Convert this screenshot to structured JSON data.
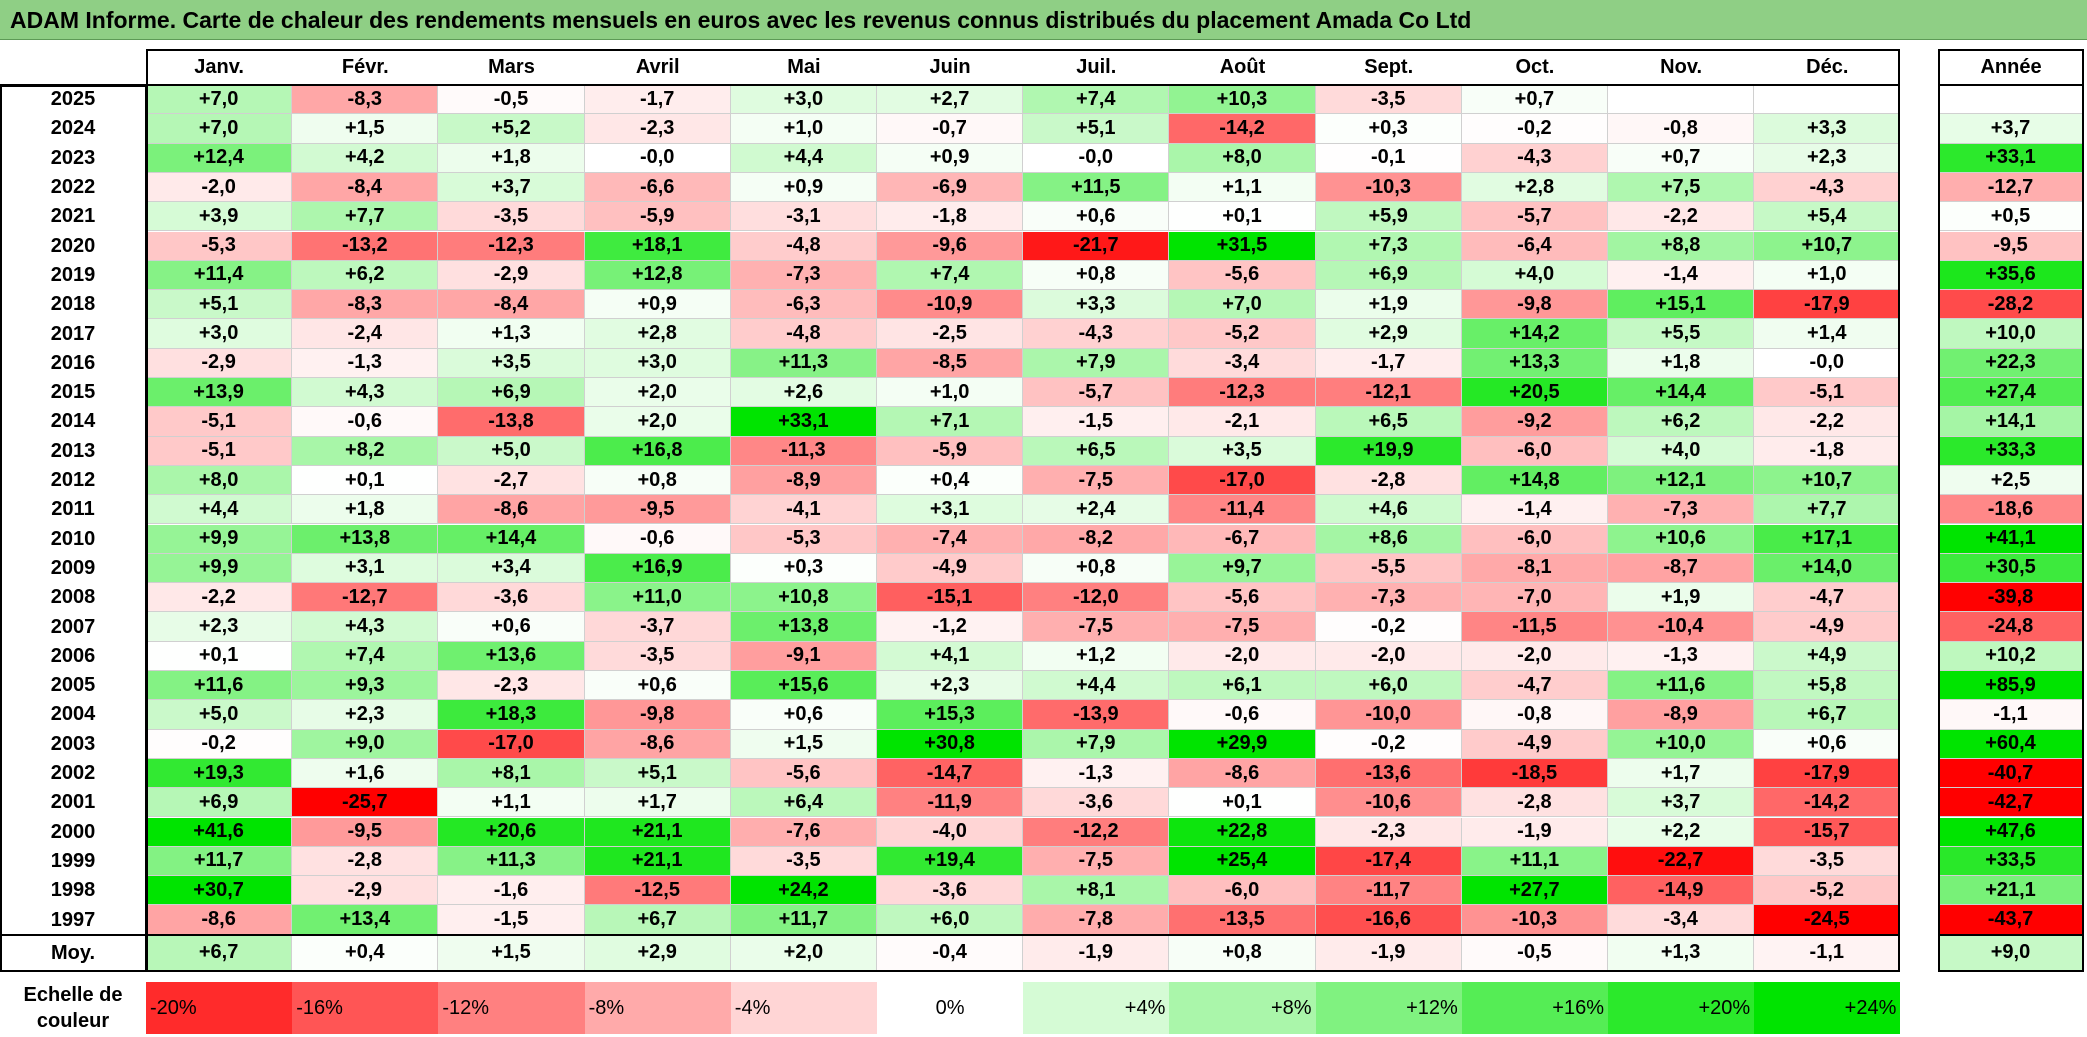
{
  "title": "ADAM Informe. Carte de chaleur des rendements mensuels en euros avec les revenus connus distribués du placement Amada Co Ltd",
  "chart_data": {
    "type": "heatmap",
    "columns": [
      "Janv.",
      "Févr.",
      "Mars",
      "Avril",
      "Mai",
      "Juin",
      "Juil.",
      "Août",
      "Sept.",
      "Oct.",
      "Nov.",
      "Déc."
    ],
    "year_header": "Année",
    "rows": [
      {
        "year": "2025",
        "months": [
          "+7,0",
          "-8,3",
          "-0,5",
          "-1,7",
          "+3,0",
          "+2,7",
          "+7,4",
          "+10,3",
          "-3,5",
          "+0,7",
          "",
          ""
        ],
        "annual": ""
      },
      {
        "year": "2024",
        "months": [
          "+7,0",
          "+1,5",
          "+5,2",
          "-2,3",
          "+1,0",
          "-0,7",
          "+5,1",
          "-14,2",
          "+0,3",
          "-0,2",
          "-0,8",
          "+3,3"
        ],
        "annual": "+3,7"
      },
      {
        "year": "2023",
        "months": [
          "+12,4",
          "+4,2",
          "+1,8",
          "-0,0",
          "+4,4",
          "+0,9",
          "-0,0",
          "+8,0",
          "-0,1",
          "-4,3",
          "+0,7",
          "+2,3"
        ],
        "annual": "+33,1"
      },
      {
        "year": "2022",
        "months": [
          "-2,0",
          "-8,4",
          "+3,7",
          "-6,6",
          "+0,9",
          "-6,9",
          "+11,5",
          "+1,1",
          "-10,3",
          "+2,8",
          "+7,5",
          "-4,3"
        ],
        "annual": "-12,7"
      },
      {
        "year": "2021",
        "months": [
          "+3,9",
          "+7,7",
          "-3,5",
          "-5,9",
          "-3,1",
          "-1,8",
          "+0,6",
          "+0,1",
          "+5,9",
          "-5,7",
          "-2,2",
          "+5,4"
        ],
        "annual": "+0,5"
      },
      {
        "year": "2020",
        "months": [
          "-5,3",
          "-13,2",
          "-12,3",
          "+18,1",
          "-4,8",
          "-9,6",
          "-21,7",
          "+31,5",
          "+7,3",
          "-6,4",
          "+8,8",
          "+10,7"
        ],
        "annual": "-9,5"
      },
      {
        "year": "2019",
        "months": [
          "+11,4",
          "+6,2",
          "-2,9",
          "+12,8",
          "-7,3",
          "+7,4",
          "+0,8",
          "-5,6",
          "+6,9",
          "+4,0",
          "-1,4",
          "+1,0"
        ],
        "annual": "+35,6"
      },
      {
        "year": "2018",
        "months": [
          "+5,1",
          "-8,3",
          "-8,4",
          "+0,9",
          "-6,3",
          "-10,9",
          "+3,3",
          "+7,0",
          "+1,9",
          "-9,8",
          "+15,1",
          "-17,9"
        ],
        "annual": "-28,2"
      },
      {
        "year": "2017",
        "months": [
          "+3,0",
          "-2,4",
          "+1,3",
          "+2,8",
          "-4,8",
          "-2,5",
          "-4,3",
          "-5,2",
          "+2,9",
          "+14,2",
          "+5,5",
          "+1,4"
        ],
        "annual": "+10,0"
      },
      {
        "year": "2016",
        "months": [
          "-2,9",
          "-1,3",
          "+3,5",
          "+3,0",
          "+11,3",
          "-8,5",
          "+7,9",
          "-3,4",
          "-1,7",
          "+13,3",
          "+1,8",
          "-0,0"
        ],
        "annual": "+22,3"
      },
      {
        "year": "2015",
        "months": [
          "+13,9",
          "+4,3",
          "+6,9",
          "+2,0",
          "+2,6",
          "+1,0",
          "-5,7",
          "-12,3",
          "-12,1",
          "+20,5",
          "+14,4",
          "-5,1"
        ],
        "annual": "+27,4"
      },
      {
        "year": "2014",
        "months": [
          "-5,1",
          "-0,6",
          "-13,8",
          "+2,0",
          "+33,1",
          "+7,1",
          "-1,5",
          "-2,1",
          "+6,5",
          "-9,2",
          "+6,2",
          "-2,2"
        ],
        "annual": "+14,1"
      },
      {
        "year": "2013",
        "months": [
          "-5,1",
          "+8,2",
          "+5,0",
          "+16,8",
          "-11,3",
          "-5,9",
          "+6,5",
          "+3,5",
          "+19,9",
          "-6,0",
          "+4,0",
          "-1,8"
        ],
        "annual": "+33,3"
      },
      {
        "year": "2012",
        "months": [
          "+8,0",
          "+0,1",
          "-2,7",
          "+0,8",
          "-8,9",
          "+0,4",
          "-7,5",
          "-17,0",
          "-2,8",
          "+14,8",
          "+12,1",
          "+10,7"
        ],
        "annual": "+2,5"
      },
      {
        "year": "2011",
        "months": [
          "+4,4",
          "+1,8",
          "-8,6",
          "-9,5",
          "-4,1",
          "+3,1",
          "+2,4",
          "-11,4",
          "+4,6",
          "-1,4",
          "-7,3",
          "+7,7"
        ],
        "annual": "-18,6"
      },
      {
        "year": "2010",
        "months": [
          "+9,9",
          "+13,8",
          "+14,4",
          "-0,6",
          "-5,3",
          "-7,4",
          "-8,2",
          "-6,7",
          "+8,6",
          "-6,0",
          "+10,6",
          "+17,1"
        ],
        "annual": "+41,1"
      },
      {
        "year": "2009",
        "months": [
          "+9,9",
          "+3,1",
          "+3,4",
          "+16,9",
          "+0,3",
          "-4,9",
          "+0,8",
          "+9,7",
          "-5,5",
          "-8,1",
          "-8,7",
          "+14,0"
        ],
        "annual": "+30,5"
      },
      {
        "year": "2008",
        "months": [
          "-2,2",
          "-12,7",
          "-3,6",
          "+11,0",
          "+10,8",
          "-15,1",
          "-12,0",
          "-5,6",
          "-7,3",
          "-7,0",
          "+1,9",
          "-4,7"
        ],
        "annual": "-39,8"
      },
      {
        "year": "2007",
        "months": [
          "+2,3",
          "+4,3",
          "+0,6",
          "-3,7",
          "+13,8",
          "-1,2",
          "-7,5",
          "-7,5",
          "-0,2",
          "-11,5",
          "-10,4",
          "-4,9"
        ],
        "annual": "-24,8"
      },
      {
        "year": "2006",
        "months": [
          "+0,1",
          "+7,4",
          "+13,6",
          "-3,5",
          "-9,1",
          "+4,1",
          "+1,2",
          "-2,0",
          "-2,0",
          "-2,0",
          "-1,3",
          "+4,9"
        ],
        "annual": "+10,2"
      },
      {
        "year": "2005",
        "months": [
          "+11,6",
          "+9,3",
          "-2,3",
          "+0,6",
          "+15,6",
          "+2,3",
          "+4,4",
          "+6,1",
          "+6,0",
          "-4,7",
          "+11,6",
          "+5,8"
        ],
        "annual": "+85,9"
      },
      {
        "year": "2004",
        "months": [
          "+5,0",
          "+2,3",
          "+18,3",
          "-9,8",
          "+0,6",
          "+15,3",
          "-13,9",
          "-0,6",
          "-10,0",
          "-0,8",
          "-8,9",
          "+6,7"
        ],
        "annual": "-1,1"
      },
      {
        "year": "2003",
        "months": [
          "-0,2",
          "+9,0",
          "-17,0",
          "-8,6",
          "+1,5",
          "+30,8",
          "+7,9",
          "+29,9",
          "-0,2",
          "-4,9",
          "+10,0",
          "+0,6"
        ],
        "annual": "+60,4"
      },
      {
        "year": "2002",
        "months": [
          "+19,3",
          "+1,6",
          "+8,1",
          "+5,1",
          "-5,6",
          "-14,7",
          "-1,3",
          "-8,6",
          "-13,6",
          "-18,5",
          "+1,7",
          "-17,9"
        ],
        "annual": "-40,7"
      },
      {
        "year": "2001",
        "months": [
          "+6,9",
          "-25,7",
          "+1,1",
          "+1,7",
          "+6,4",
          "-11,9",
          "-3,6",
          "+0,1",
          "-10,6",
          "-2,8",
          "+3,7",
          "-14,2"
        ],
        "annual": "-42,7"
      },
      {
        "year": "2000",
        "months": [
          "+41,6",
          "-9,5",
          "+20,6",
          "+21,1",
          "-7,6",
          "-4,0",
          "-12,2",
          "+22,8",
          "-2,3",
          "-1,9",
          "+2,2",
          "-15,7"
        ],
        "annual": "+47,6"
      },
      {
        "year": "1999",
        "months": [
          "+11,7",
          "-2,8",
          "+11,3",
          "+21,1",
          "-3,5",
          "+19,4",
          "-7,5",
          "+25,4",
          "-17,4",
          "+11,1",
          "-22,7",
          "-3,5"
        ],
        "annual": "+33,5"
      },
      {
        "year": "1998",
        "months": [
          "+30,7",
          "-2,9",
          "-1,6",
          "-12,5",
          "+24,2",
          "-3,6",
          "+8,1",
          "-6,0",
          "-11,7",
          "+27,7",
          "-14,9",
          "-5,2"
        ],
        "annual": "+21,1"
      },
      {
        "year": "1997",
        "months": [
          "-8,6",
          "+13,4",
          "-1,5",
          "+6,7",
          "+11,7",
          "+6,0",
          "-7,8",
          "-13,5",
          "-16,6",
          "-10,3",
          "-3,4",
          "-24,5"
        ],
        "annual": "-43,7"
      }
    ],
    "average": {
      "label": "Moy.",
      "months": [
        "+6,7",
        "+0,4",
        "+1,5",
        "+2,9",
        "+2,0",
        "-0,4",
        "-1,9",
        "+0,8",
        "-1,9",
        "-0,5",
        "+1,3",
        "-1,1"
      ],
      "annual": "+9,0"
    },
    "color_scale": {
      "label": "Echelle de couleur",
      "stops": [
        "-20%",
        "-16%",
        "-12%",
        "-8%",
        "-4%",
        "0%",
        "+4%",
        "+8%",
        "+12%",
        "+16%",
        "+20%",
        "+24%"
      ],
      "stop_values": [
        -20,
        -16,
        -12,
        -8,
        -4,
        0,
        4,
        8,
        12,
        16,
        20,
        24
      ],
      "colors": {
        "negative_max": "#ff0000",
        "zero": "#ffffff",
        "positive_max": "#00e400"
      }
    }
  }
}
